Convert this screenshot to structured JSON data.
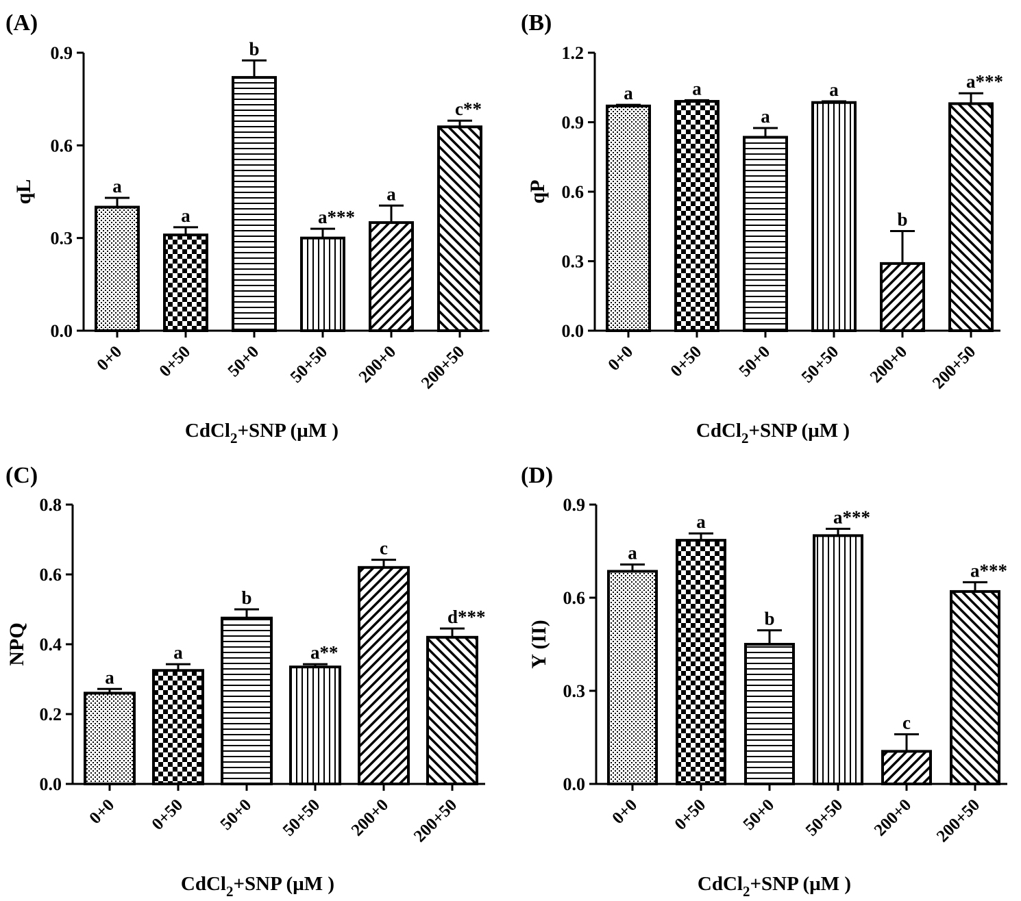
{
  "x_axis_title": {
    "prefix": "CdCl",
    "subscript": "2",
    "suffix": "+SNP (µM )"
  },
  "chart_data": [
    {
      "type": "bar",
      "panel": "(A)",
      "ylabel": "qL",
      "ylim": [
        0,
        0.9
      ],
      "yticks": [
        "0.0",
        "0.3",
        "0.6",
        "0.9"
      ],
      "categories": [
        "0+0",
        "0+50",
        "50+0",
        "50+50",
        "200+0",
        "200+50"
      ],
      "values": [
        0.4,
        0.31,
        0.82,
        0.3,
        0.35,
        0.66
      ],
      "errors": [
        0.03,
        0.025,
        0.055,
        0.03,
        0.055,
        0.02
      ],
      "labels": [
        "a",
        "a",
        "b",
        "a***",
        "a",
        "c**"
      ]
    },
    {
      "type": "bar",
      "panel": "(B)",
      "ylabel": "qP",
      "ylim": [
        0,
        1.2
      ],
      "yticks": [
        "0.0",
        "0.3",
        "0.6",
        "0.9",
        "1.2"
      ],
      "categories": [
        "0+0",
        "0+50",
        "50+0",
        "50+50",
        "200+0",
        "200+50"
      ],
      "values": [
        0.97,
        0.99,
        0.835,
        0.985,
        0.29,
        0.98
      ],
      "errors": [
        0.005,
        0.005,
        0.04,
        0.005,
        0.14,
        0.045
      ],
      "labels": [
        "a",
        "a",
        "a",
        "a",
        "b",
        "a***"
      ]
    },
    {
      "type": "bar",
      "panel": "(C)",
      "ylabel": "NPQ",
      "ylim": [
        0,
        0.8
      ],
      "yticks": [
        "0.0",
        "0.2",
        "0.4",
        "0.6",
        "0.8"
      ],
      "categories": [
        "0+0",
        "0+50",
        "50+0",
        "50+50",
        "200+0",
        "200+50"
      ],
      "values": [
        0.26,
        0.325,
        0.475,
        0.335,
        0.62,
        0.42
      ],
      "errors": [
        0.012,
        0.018,
        0.025,
        0.008,
        0.022,
        0.025
      ],
      "labels": [
        "a",
        "a",
        "b",
        "a**",
        "c",
        "d***"
      ]
    },
    {
      "type": "bar",
      "panel": "(D)",
      "ylabel": "Y (II)",
      "ylim": [
        0,
        0.9
      ],
      "yticks": [
        "0.0",
        "0.3",
        "0.6",
        "0.9"
      ],
      "categories": [
        "0+0",
        "0+50",
        "50+0",
        "50+50",
        "200+0",
        "200+50"
      ],
      "values": [
        0.685,
        0.785,
        0.45,
        0.8,
        0.105,
        0.62
      ],
      "errors": [
        0.022,
        0.022,
        0.045,
        0.022,
        0.055,
        0.03
      ],
      "labels": [
        "a",
        "a",
        "b",
        "a***",
        "c",
        "a***"
      ]
    }
  ]
}
